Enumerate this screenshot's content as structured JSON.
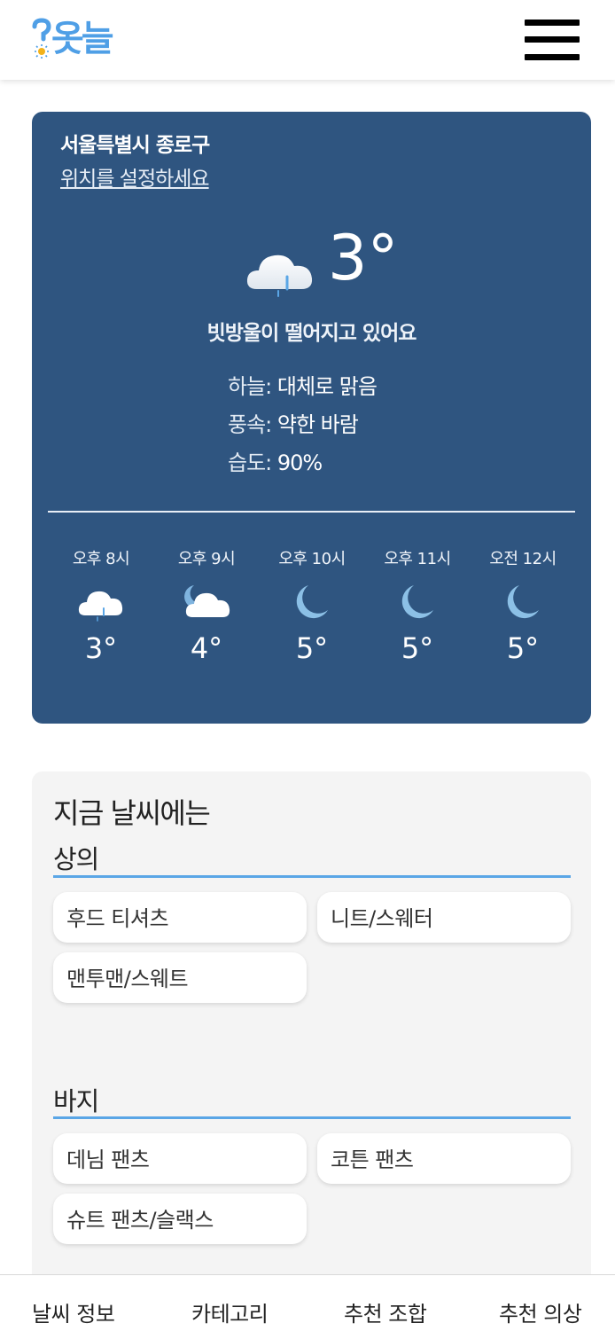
{
  "header": {
    "logo_text": "옷늘",
    "logo_mark": "?"
  },
  "weather": {
    "location": "서울특별시 종로구",
    "set_location_link": "위치를 설정하세요",
    "current_temp": "3°",
    "current_icon": "cloud-rain-icon",
    "summary": "빗방울이 떨어지고 있어요",
    "details": [
      {
        "label": "하늘:",
        "value": "대체로 맑음"
      },
      {
        "label": "풍속:",
        "value": "약한 바람"
      },
      {
        "label": "습도:",
        "value": "90%"
      }
    ],
    "hourly": [
      {
        "time": "오후 8시",
        "icon": "cloud-rain-icon",
        "temp": "3°"
      },
      {
        "time": "오후 9시",
        "icon": "moon-cloud-icon",
        "temp": "4°"
      },
      {
        "time": "오후 10시",
        "icon": "moon-icon",
        "temp": "5°"
      },
      {
        "time": "오후 11시",
        "icon": "moon-icon",
        "temp": "5°"
      },
      {
        "time": "오전 12시",
        "icon": "moon-icon",
        "temp": "5°"
      }
    ]
  },
  "recommendation": {
    "title": "지금 날씨에는",
    "sections": [
      {
        "title": "상의",
        "items": [
          "후드 티셔츠",
          "니트/스웨터",
          "맨투맨/스웨트"
        ]
      },
      {
        "title": "바지",
        "items": [
          "데님 팬츠",
          "코튼 팬츠",
          "슈트 팬츠/슬랙스"
        ]
      }
    ]
  },
  "bottom_nav": [
    "날씨 정보",
    "카테고리",
    "추천 조합",
    "추천 의상"
  ],
  "colors": {
    "card_bg": "#2f5580",
    "accent": "#5aa6e6",
    "logo": "#4f9fe6"
  }
}
